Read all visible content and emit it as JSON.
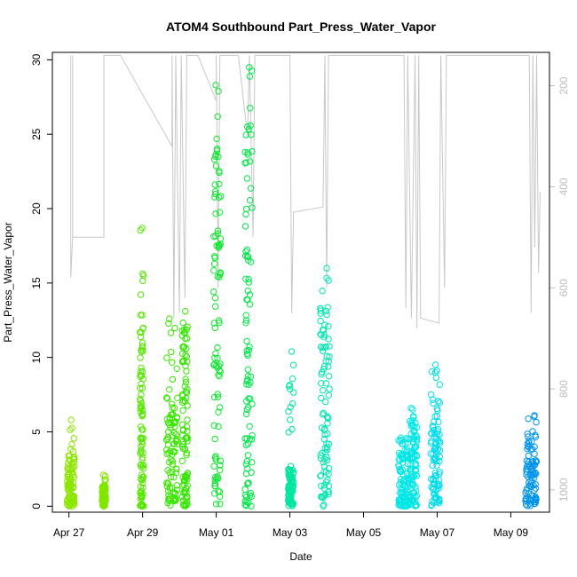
{
  "chart_data": {
    "type": "scatter",
    "title": "ATOM4 Southbound Part_Press_Water_Vapor",
    "xlabel": "Date",
    "ylabel": "Part_Press_Water_Vapor",
    "x_ticks": [
      "Apr 27",
      "Apr 29",
      "May 01",
      "May 03",
      "May 05",
      "May 07",
      "May 09"
    ],
    "x_tick_days": [
      0,
      2,
      4,
      6,
      8,
      10,
      12
    ],
    "xlim_days": [
      -0.45,
      13.05
    ],
    "ylim": [
      -0.4,
      30.5
    ],
    "y_ticks": [
      0,
      5,
      10,
      15,
      20,
      25,
      30
    ],
    "y2_ticks": [
      200,
      400,
      600,
      800,
      1000
    ],
    "y2lim": [
      1044,
      134
    ],
    "grid": false,
    "series": [
      {
        "values_clusters": [
          {
            "day": 0.05,
            "ymin": 0.0,
            "ymax": 3.6,
            "sparse_max": 5.8,
            "color": "#8ce600",
            "width": 0.2
          },
          {
            "day": 0.95,
            "ymin": 0.0,
            "ymax": 1.5,
            "sparse_max": 2.1,
            "color": "#82e600",
            "width": 0.1
          },
          {
            "day": 1.98,
            "ymin": 0.0,
            "ymax": 12.5,
            "sparse_max": 18.7,
            "color": "#55e600",
            "width": 0.1
          },
          {
            "day": 2.8,
            "ymin": 0.0,
            "ymax": 7.5,
            "sparse_max": 12.6,
            "color": "#3ae600",
            "width": 0.3
          },
          {
            "day": 3.15,
            "ymin": 0.0,
            "ymax": 12.0,
            "sparse_max": 13.1,
            "color": "#33e600",
            "width": 0.15
          },
          {
            "day": 4.03,
            "ymin": 0.0,
            "ymax": 24.5,
            "sparse_max": 28.3,
            "color": "#11e630",
            "width": 0.2
          },
          {
            "day": 4.88,
            "ymin": 0.0,
            "ymax": 26.0,
            "sparse_max": 29.5,
            "color": "#00e64a",
            "width": 0.2
          },
          {
            "day": 6.03,
            "ymin": 0.0,
            "ymax": 2.5,
            "sparse_max": 10.4,
            "color": "#00e6a0",
            "width": 0.15
          },
          {
            "day": 6.95,
            "ymin": 0.0,
            "ymax": 14.5,
            "sparse_max": 16.0,
            "color": "#00e6b0",
            "width": 0.25
          },
          {
            "day": 9.1,
            "ymin": 0.0,
            "ymax": 4.5,
            "sparse_max": 4.6,
            "color": "#00e6e6",
            "width": 0.3
          },
          {
            "day": 9.35,
            "ymin": 0.0,
            "ymax": 6.0,
            "sparse_max": 6.6,
            "color": "#00e6e6",
            "width": 0.2
          },
          {
            "day": 9.95,
            "ymin": 0.0,
            "ymax": 7.5,
            "sparse_max": 9.5,
            "color": "#00dcea",
            "width": 0.25
          },
          {
            "day": 12.55,
            "ymin": 0.0,
            "ymax": 5.0,
            "sparse_max": 6.1,
            "color": "#0094ea",
            "width": 0.3
          }
        ]
      }
    ],
    "pressure_line": {
      "color": "#c8c8c8",
      "points_day_hpa": [
        [
          0.05,
          140
        ],
        [
          0.05,
          580
        ],
        [
          0.1,
          500
        ],
        [
          0.1,
          140
        ],
        [
          0.1,
          500
        ],
        [
          0.95,
          500
        ],
        [
          0.95,
          140
        ],
        [
          1.4,
          140
        ],
        [
          2.8,
          320
        ],
        [
          2.8,
          140
        ],
        [
          2.85,
          660
        ],
        [
          2.9,
          140
        ],
        [
          3.0,
          650
        ],
        [
          3.05,
          140
        ],
        [
          3.15,
          620
        ],
        [
          3.2,
          140
        ],
        [
          3.3,
          140
        ],
        [
          3.5,
          140
        ],
        [
          4.0,
          230
        ],
        [
          4.0,
          140
        ],
        [
          4.05,
          600
        ],
        [
          4.1,
          140
        ],
        [
          4.6,
          140
        ],
        [
          4.85,
          300
        ],
        [
          4.9,
          140
        ],
        [
          5.0,
          500
        ],
        [
          5.05,
          140
        ],
        [
          6.0,
          140
        ],
        [
          6.05,
          650
        ],
        [
          6.1,
          450
        ],
        [
          6.9,
          440
        ],
        [
          6.95,
          140
        ],
        [
          7.0,
          600
        ],
        [
          7.05,
          140
        ],
        [
          9.1,
          140
        ],
        [
          9.15,
          640
        ],
        [
          9.2,
          140
        ],
        [
          9.3,
          660
        ],
        [
          9.4,
          140
        ],
        [
          9.45,
          680
        ],
        [
          9.5,
          140
        ],
        [
          9.55,
          660
        ],
        [
          10.05,
          670
        ],
        [
          10.1,
          140
        ],
        [
          10.2,
          600
        ],
        [
          10.25,
          140
        ],
        [
          12.5,
          140
        ],
        [
          12.55,
          650
        ],
        [
          12.6,
          140
        ],
        [
          12.65,
          520
        ],
        [
          12.7,
          140
        ],
        [
          12.75,
          570
        ],
        [
          12.8,
          410
        ]
      ]
    }
  }
}
